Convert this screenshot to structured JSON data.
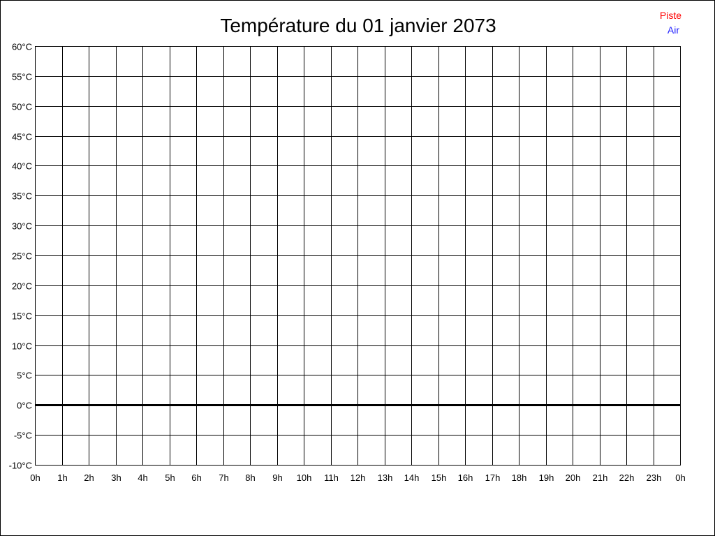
{
  "chart_data": {
    "type": "line",
    "title": "Température du 01 janvier 2073",
    "xlabel": "",
    "ylabel": "",
    "x_tick_labels": [
      "0h",
      "1h",
      "2h",
      "3h",
      "4h",
      "5h",
      "6h",
      "7h",
      "8h",
      "9h",
      "10h",
      "11h",
      "12h",
      "13h",
      "14h",
      "15h",
      "16h",
      "17h",
      "18h",
      "19h",
      "20h",
      "21h",
      "22h",
      "23h",
      "0h"
    ],
    "y_tick_labels": [
      "60°C",
      "55°C",
      "50°C",
      "45°C",
      "40°C",
      "35°C",
      "30°C",
      "25°C",
      "20°C",
      "15°C",
      "10°C",
      "5°C",
      "0°C",
      "-5°C",
      "-10°C"
    ],
    "ylim": [
      -10,
      60
    ],
    "xlim": [
      0,
      24
    ],
    "grid": true,
    "legend_placement": "top-right",
    "series": [
      {
        "name": "Piste",
        "color": "#ff0000",
        "values": []
      },
      {
        "name": "Air",
        "color": "#2222ff",
        "values": []
      }
    ]
  }
}
